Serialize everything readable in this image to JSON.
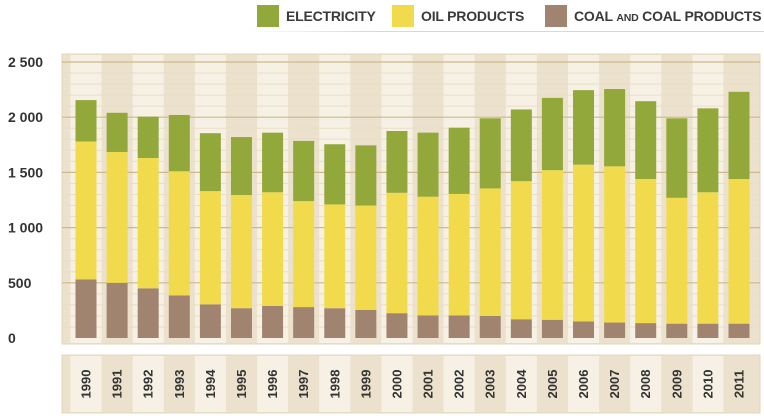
{
  "chart_data": {
    "type": "bar",
    "stacked": true,
    "categories": [
      "1990",
      "1991",
      "1992",
      "1993",
      "1994",
      "1995",
      "1996",
      "1997",
      "1998",
      "1999",
      "2000",
      "2001",
      "2002",
      "2003",
      "2004",
      "2005",
      "2006",
      "2007",
      "2008",
      "2009",
      "2010",
      "2011"
    ],
    "series": [
      {
        "name": "COAL AND COAL PRODUCTS",
        "color": "#a0846f",
        "values": [
          530,
          500,
          450,
          385,
          305,
          270,
          290,
          280,
          270,
          255,
          225,
          205,
          205,
          200,
          170,
          165,
          150,
          140,
          135,
          130,
          130,
          130
        ]
      },
      {
        "name": "OIL PRODUCTS",
        "color": "#f1db4c",
        "values": [
          1250,
          1185,
          1180,
          1125,
          1025,
          1025,
          1030,
          960,
          940,
          945,
          1090,
          1075,
          1100,
          1155,
          1250,
          1355,
          1420,
          1415,
          1305,
          1140,
          1190,
          1310
        ]
      },
      {
        "name": "ELECTRICITY",
        "color": "#93a83b",
        "values": [
          375,
          355,
          375,
          510,
          525,
          525,
          540,
          545,
          545,
          545,
          560,
          580,
          600,
          635,
          650,
          655,
          675,
          700,
          705,
          720,
          760,
          790
        ]
      }
    ],
    "ylim": [
      0,
      2500
    ],
    "yticks": [
      {
        "value": 0,
        "label": "0"
      },
      {
        "value": 500,
        "label": "500"
      },
      {
        "value": 1000,
        "label": "1 000"
      },
      {
        "value": 1500,
        "label": "1 500"
      },
      {
        "value": 2000,
        "label": "2 000"
      },
      {
        "value": 2500,
        "label": "2 500"
      }
    ],
    "grid": true,
    "legend_position": "top-right",
    "title": "",
    "xlabel": "",
    "ylabel": ""
  },
  "legend": {
    "items": [
      {
        "label": "ELECTRICITY",
        "color": "#93a83b"
      },
      {
        "label": "OIL PRODUCTS",
        "color": "#f1db4c"
      },
      {
        "label": "COAL AND COAL PRODUCTS",
        "label_main": "COAL ",
        "label_small": "AND",
        "label_rest": " COAL PRODUCTS",
        "color": "#a0846f"
      }
    ]
  },
  "colors": {
    "plot_background": "#ebe1cc",
    "alternate_column": "#f6f1e4",
    "gridline_major": "#cdb98b",
    "gridline_minor": "#e9dfc6",
    "panel_border": "#e2d7bc"
  }
}
